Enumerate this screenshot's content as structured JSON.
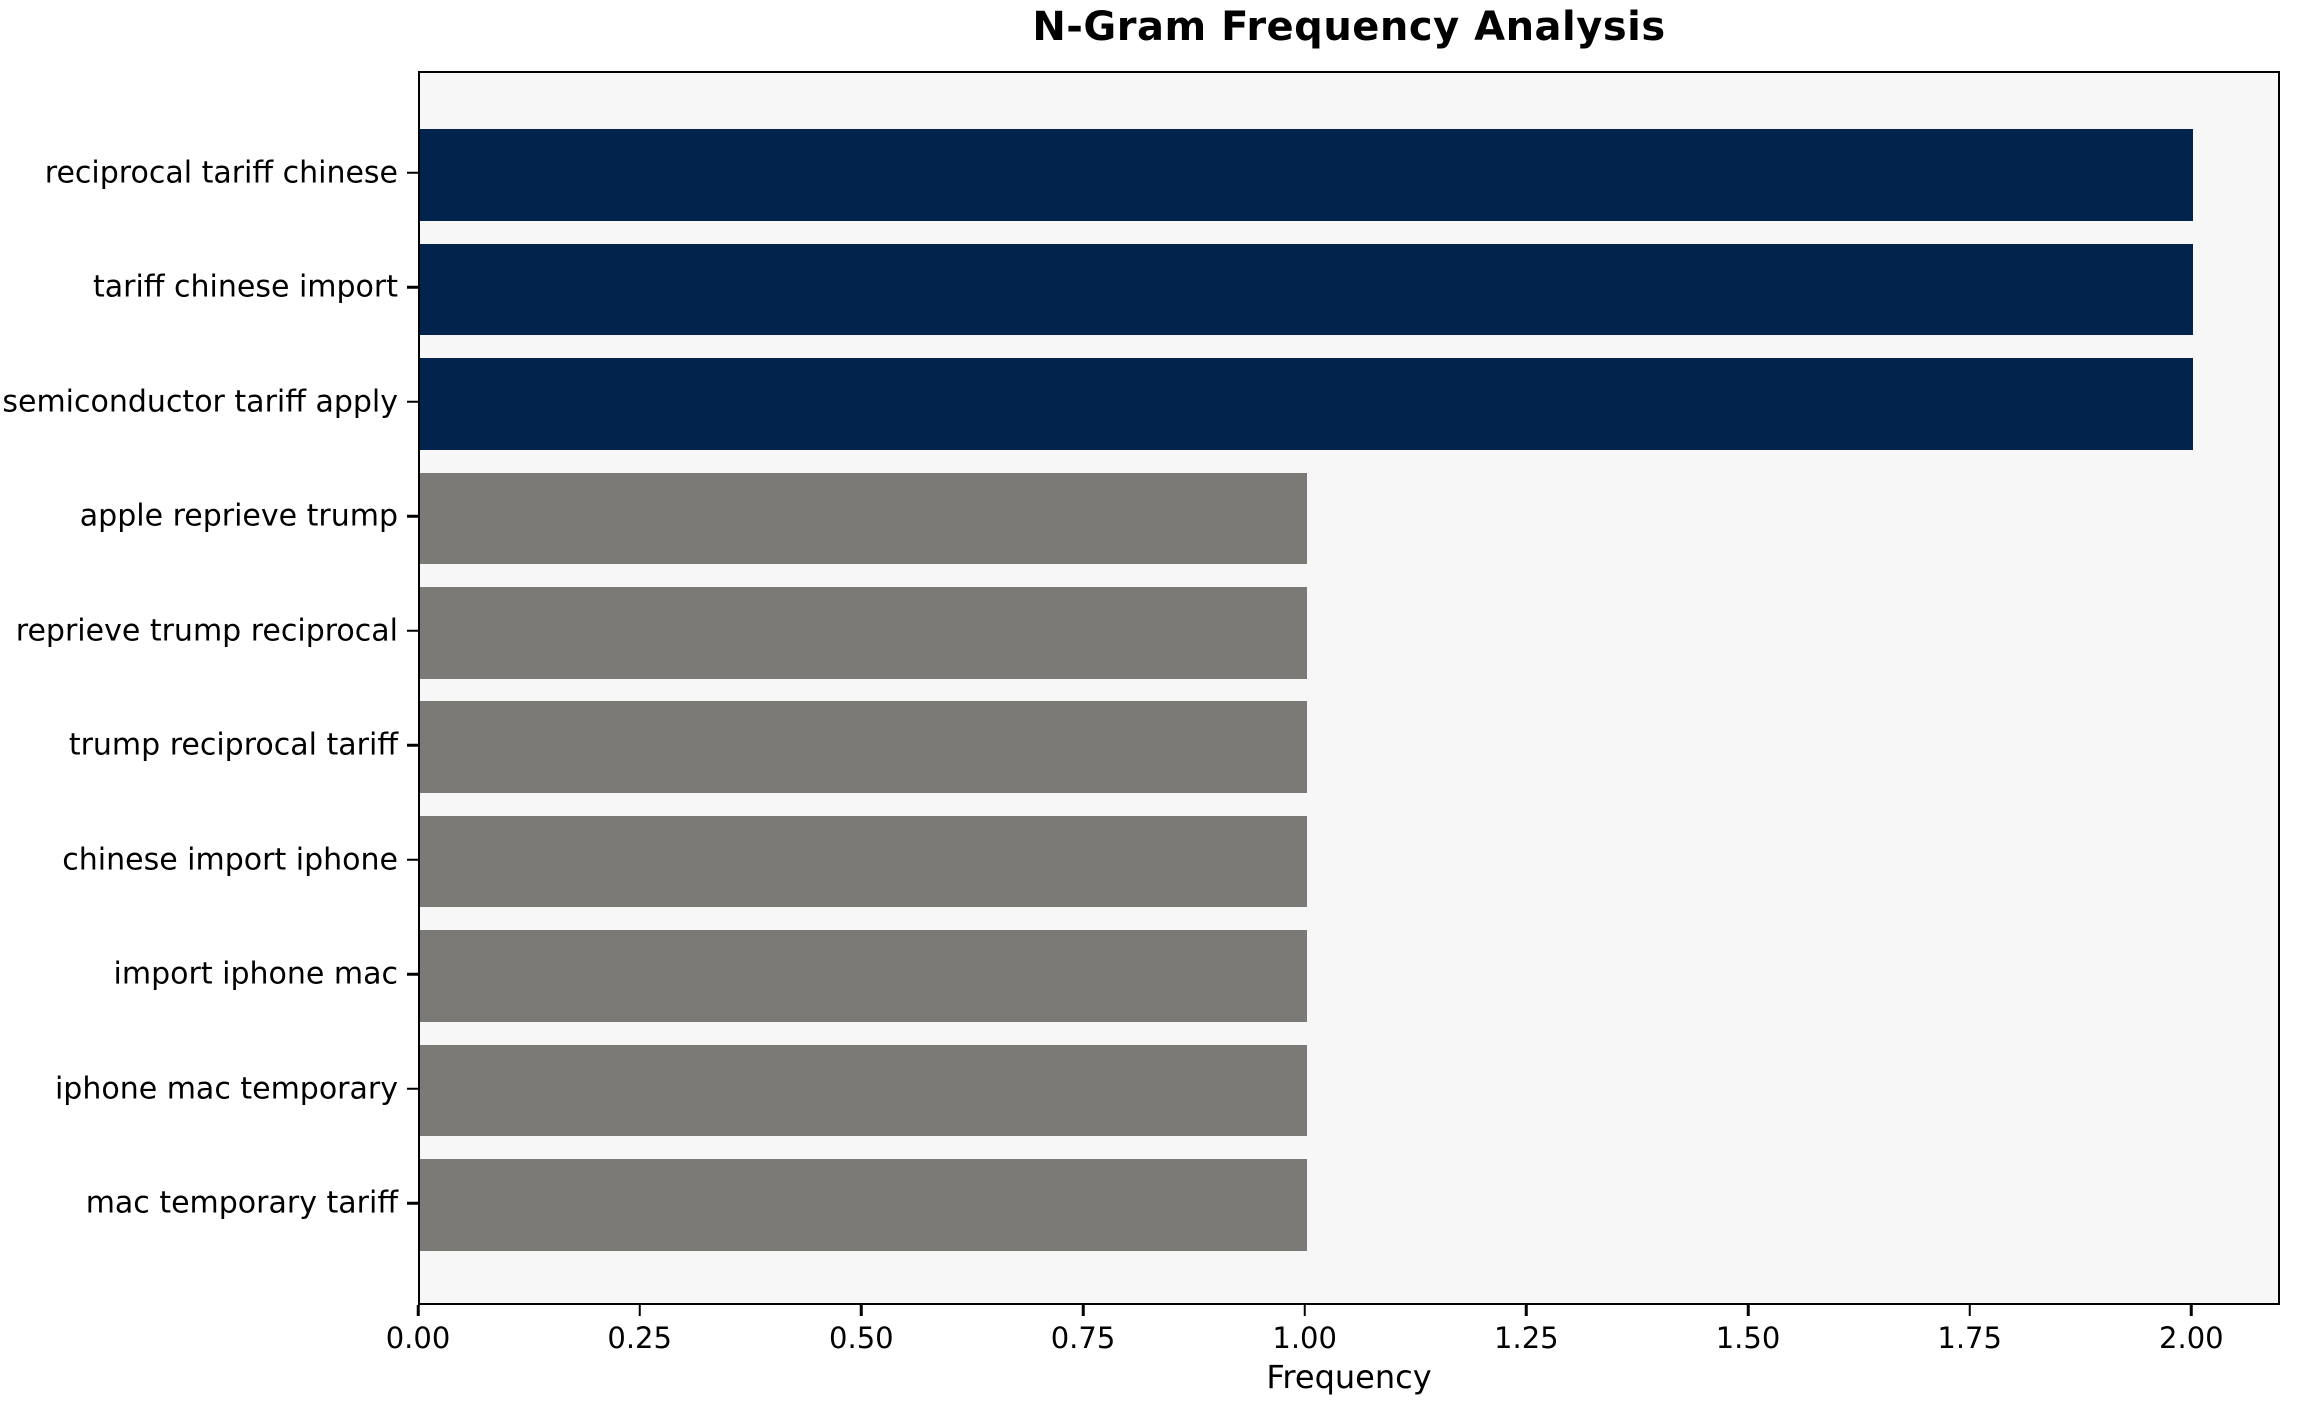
{
  "chart_data": {
    "type": "bar",
    "orientation": "horizontal",
    "title": "N-Gram Frequency Analysis",
    "xlabel": "Frequency",
    "ylabel": "",
    "categories": [
      "reciprocal tariff chinese",
      "tariff chinese import",
      "semiconductor tariff apply",
      "apple reprieve trump",
      "reprieve trump reciprocal",
      "trump reciprocal tariff",
      "chinese import iphone",
      "import iphone mac",
      "iphone mac temporary",
      "mac temporary tariff"
    ],
    "values": [
      2,
      2,
      2,
      1,
      1,
      1,
      1,
      1,
      1,
      1
    ],
    "bar_colors": [
      "#02234c",
      "#02234c",
      "#02234c",
      "#7b7a76",
      "#7b7a76",
      "#7b7a76",
      "#7b7a76",
      "#7b7a76",
      "#7b7a76",
      "#7b7a76"
    ],
    "xlim": [
      0,
      2.1
    ],
    "x_ticks": [
      0.0,
      0.25,
      0.5,
      0.75,
      1.0,
      1.25,
      1.5,
      1.75,
      2.0
    ],
    "x_tick_labels": [
      "0.00",
      "0.25",
      "0.50",
      "0.75",
      "1.00",
      "1.25",
      "1.50",
      "1.75",
      "2.00"
    ],
    "grid": false,
    "legend": false,
    "colors": {
      "highlight_bar": "#02234c",
      "default_bar": "#7b7a76",
      "plot_background": "#f7f7f7",
      "figure_background": "#ffffff",
      "text": "#000000"
    }
  }
}
